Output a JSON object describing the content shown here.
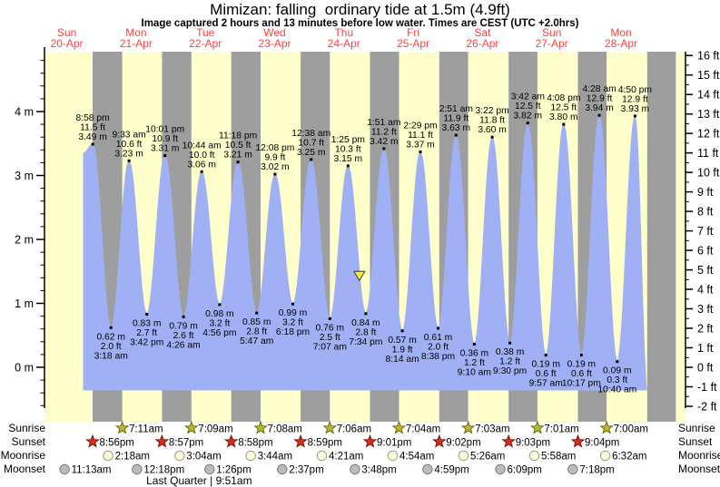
{
  "chart_data": {
    "type": "area",
    "title": "Mimizan: falling  ordinary tide at 1.5m (4.9ft)",
    "subtitle": "Image captured 2 hours and 13 minutes before low water. Times are CEST (UTC +2.0hrs)",
    "x_axis": {
      "days": [
        {
          "weekday": "Sun",
          "date": "20-Apr"
        },
        {
          "weekday": "Mon",
          "date": "21-Apr"
        },
        {
          "weekday": "Tue",
          "date": "22-Apr"
        },
        {
          "weekday": "Wed",
          "date": "23-Apr"
        },
        {
          "weekday": "Thu",
          "date": "24-Apr"
        },
        {
          "weekday": "Fri",
          "date": "25-Apr"
        },
        {
          "weekday": "Sat",
          "date": "26-Apr"
        },
        {
          "weekday": "Sun",
          "date": "27-Apr"
        },
        {
          "weekday": "Mon",
          "date": "28-Apr"
        }
      ]
    },
    "y_axis_left": {
      "unit": "m",
      "min": 0,
      "max": 4,
      "tick_step_m": 1,
      "minor_step_m": 0.2
    },
    "y_axis_right": {
      "unit": "ft",
      "min": -2,
      "max": 16,
      "tick_step_ft": 1
    },
    "tides": [
      {
        "day": 0,
        "time": "8:58 pm",
        "height_m": 3.49,
        "height_ft": 11.5,
        "type": "high"
      },
      {
        "day": 1,
        "time": "3:18 am",
        "height_m": 0.62,
        "height_ft": 2.0,
        "type": "low"
      },
      {
        "day": 1,
        "time": "9:33 am",
        "height_m": 3.23,
        "height_ft": 10.6,
        "type": "high"
      },
      {
        "day": 1,
        "time": "3:42 pm",
        "height_m": 0.83,
        "height_ft": 2.7,
        "type": "low"
      },
      {
        "day": 1,
        "time": "10:01 pm",
        "height_m": 3.31,
        "height_ft": 10.9,
        "type": "high"
      },
      {
        "day": 2,
        "time": "4:26 am",
        "height_m": 0.79,
        "height_ft": 2.6,
        "type": "low"
      },
      {
        "day": 2,
        "time": "10:44 am",
        "height_m": 3.06,
        "height_ft": 10.0,
        "type": "high"
      },
      {
        "day": 2,
        "time": "4:56 pm",
        "height_m": 0.98,
        "height_ft": 3.2,
        "type": "low"
      },
      {
        "day": 2,
        "time": "11:18 pm",
        "height_m": 3.21,
        "height_ft": 10.5,
        "type": "high"
      },
      {
        "day": 3,
        "time": "5:47 am",
        "height_m": 0.85,
        "height_ft": 2.8,
        "type": "low"
      },
      {
        "day": 3,
        "time": "12:08 pm",
        "height_m": 3.02,
        "height_ft": 9.9,
        "type": "high"
      },
      {
        "day": 3,
        "time": "6:18 pm",
        "height_m": 0.99,
        "height_ft": 3.2,
        "type": "low"
      },
      {
        "day": 4,
        "time": "12:38 am",
        "height_m": 3.25,
        "height_ft": 10.7,
        "type": "high"
      },
      {
        "day": 4,
        "time": "7:07 am",
        "height_m": 0.76,
        "height_ft": 2.5,
        "type": "low"
      },
      {
        "day": 4,
        "time": "1:25 pm",
        "height_m": 3.15,
        "height_ft": 10.3,
        "type": "high"
      },
      {
        "day": 4,
        "time": "7:34 pm",
        "height_m": 0.84,
        "height_ft": 2.8,
        "type": "low"
      },
      {
        "day": 5,
        "time": "1:51 am",
        "height_m": 3.42,
        "height_ft": 11.2,
        "type": "high"
      },
      {
        "day": 5,
        "time": "8:14 am",
        "height_m": 0.57,
        "height_ft": 1.9,
        "type": "low"
      },
      {
        "day": 5,
        "time": "2:29 pm",
        "height_m": 3.37,
        "height_ft": 11.1,
        "type": "high"
      },
      {
        "day": 5,
        "time": "8:38 pm",
        "height_m": 0.61,
        "height_ft": 2.0,
        "type": "low"
      },
      {
        "day": 6,
        "time": "2:51 am",
        "height_m": 3.63,
        "height_ft": 11.9,
        "type": "high"
      },
      {
        "day": 6,
        "time": "9:10 am",
        "height_m": 0.36,
        "height_ft": 1.2,
        "type": "low"
      },
      {
        "day": 6,
        "time": "3:22 pm",
        "height_m": 3.6,
        "height_ft": 11.8,
        "type": "high"
      },
      {
        "day": 6,
        "time": "9:30 pm",
        "height_m": 0.38,
        "height_ft": 1.2,
        "type": "low"
      },
      {
        "day": 7,
        "time": "3:42 am",
        "height_m": 3.82,
        "height_ft": 12.5,
        "type": "high"
      },
      {
        "day": 7,
        "time": "9:57 am",
        "height_m": 0.19,
        "height_ft": 0.6,
        "type": "low"
      },
      {
        "day": 7,
        "time": "4:08 pm",
        "height_m": 3.8,
        "height_ft": 12.5,
        "type": "high"
      },
      {
        "day": 7,
        "time": "10:17 pm",
        "height_m": 0.19,
        "height_ft": 0.6,
        "type": "low"
      },
      {
        "day": 8,
        "time": "4:28 am",
        "height_m": 3.94,
        "height_ft": 12.9,
        "type": "high"
      },
      {
        "day": 8,
        "time": "10:40 am",
        "height_m": 0.09,
        "height_ft": 0.3,
        "type": "low"
      },
      {
        "day": 8,
        "time": "4:50 pm",
        "height_m": 3.93,
        "height_ft": 12.9,
        "type": "high"
      }
    ],
    "sun_moon": {
      "sunrise": [
        {
          "day": 1,
          "time": "7:11am"
        },
        {
          "day": 2,
          "time": "7:09am"
        },
        {
          "day": 3,
          "time": "7:08am"
        },
        {
          "day": 4,
          "time": "7:06am"
        },
        {
          "day": 5,
          "time": "7:04am"
        },
        {
          "day": 6,
          "time": "7:03am"
        },
        {
          "day": 7,
          "time": "7:01am"
        },
        {
          "day": 8,
          "time": "7:00am"
        }
      ],
      "sunset": [
        {
          "day": 0,
          "time": "8:56pm"
        },
        {
          "day": 1,
          "time": "8:57pm"
        },
        {
          "day": 2,
          "time": "8:58pm"
        },
        {
          "day": 3,
          "time": "8:59pm"
        },
        {
          "day": 4,
          "time": "9:01pm"
        },
        {
          "day": 5,
          "time": "9:02pm"
        },
        {
          "day": 6,
          "time": "9:03pm"
        },
        {
          "day": 7,
          "time": "9:04pm"
        }
      ],
      "moonrise": [
        {
          "day": 1,
          "time": "2:18am"
        },
        {
          "day": 2,
          "time": "3:04am"
        },
        {
          "day": 3,
          "time": "3:44am"
        },
        {
          "day": 4,
          "time": "4:21am"
        },
        {
          "day": 5,
          "time": "4:54am"
        },
        {
          "day": 6,
          "time": "5:26am"
        },
        {
          "day": 7,
          "time": "5:58am"
        },
        {
          "day": 8,
          "time": "6:32am"
        }
      ],
      "moonset": [
        {
          "day": 0,
          "time": "11:13am"
        },
        {
          "day": 1,
          "time": "12:18pm"
        },
        {
          "day": 2,
          "time": "1:26pm"
        },
        {
          "day": 3,
          "time": "2:37pm"
        },
        {
          "day": 4,
          "time": "3:48pm"
        },
        {
          "day": 5,
          "time": "4:59pm"
        },
        {
          "day": 6,
          "time": "6:09pm"
        },
        {
          "day": 7,
          "time": "7:18pm"
        }
      ]
    },
    "moon_phase": {
      "text": "Last Quarter | 9:51am",
      "day": 2,
      "time": "9:51am"
    },
    "current_marker": {
      "level_m": 1.5,
      "hours_before_low_water": 2.217,
      "at_low": {
        "day": 4,
        "time": "7:34 pm"
      }
    },
    "legend_position": "none",
    "grid": false
  },
  "row_labels": {
    "sunrise": "Sunrise",
    "sunset": "Sunset",
    "moonrise": "Moonrise",
    "moonset": "Moonset"
  },
  "colors": {
    "day_band": "#FFFFCC",
    "night_band": "#9E9E9E",
    "tide_fill": "#9FB0F5",
    "date_label": "#FF4040",
    "sunrise_star_fill": "#B9B937",
    "sunrise_star_stroke": "#6B6B10",
    "sunset_star_fill": "#DD2A1C",
    "sunset_star_stroke": "#7A1607",
    "moonrise_circle_fill": "#FFFFE0",
    "moonrise_circle_stroke": "#99997A",
    "moonset_circle_fill": "#BBBBBB",
    "moonset_circle_stroke": "#7A7A7A",
    "marker_fill": "#EDED4F",
    "marker_stroke": "#3A3A3A",
    "axis": "#000000"
  }
}
